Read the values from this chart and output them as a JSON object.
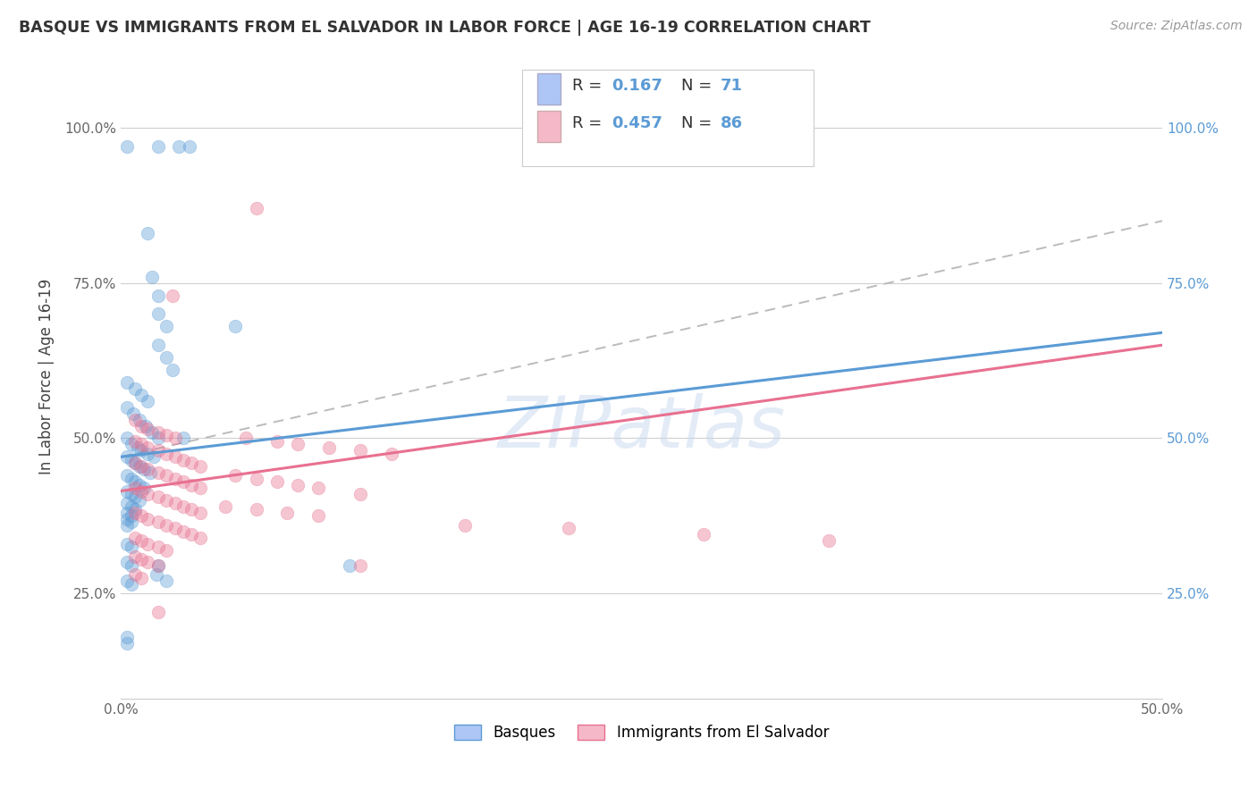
{
  "title": "BASQUE VS IMMIGRANTS FROM EL SALVADOR IN LABOR FORCE | AGE 16-19 CORRELATION CHART",
  "source": "Source: ZipAtlas.com",
  "ylabel": "In Labor Force | Age 16-19",
  "xlim": [
    0.0,
    0.5
  ],
  "ylim": [
    0.08,
    1.12
  ],
  "ytick_vals": [
    0.25,
    0.5,
    0.75,
    1.0
  ],
  "xtick_vals": [
    0.0,
    0.5
  ],
  "xtick_labels": [
    "0.0%",
    "50.0%"
  ],
  "watermark": "ZIPatlas",
  "blue_scatter": [
    [
      0.003,
      0.97
    ],
    [
      0.018,
      0.97
    ],
    [
      0.028,
      0.97
    ],
    [
      0.033,
      0.97
    ],
    [
      0.013,
      0.83
    ],
    [
      0.015,
      0.76
    ],
    [
      0.018,
      0.73
    ],
    [
      0.018,
      0.7
    ],
    [
      0.022,
      0.68
    ],
    [
      0.018,
      0.65
    ],
    [
      0.022,
      0.63
    ],
    [
      0.025,
      0.61
    ],
    [
      0.003,
      0.59
    ],
    [
      0.007,
      0.58
    ],
    [
      0.01,
      0.57
    ],
    [
      0.013,
      0.56
    ],
    [
      0.003,
      0.55
    ],
    [
      0.006,
      0.54
    ],
    [
      0.009,
      0.53
    ],
    [
      0.012,
      0.52
    ],
    [
      0.015,
      0.51
    ],
    [
      0.018,
      0.5
    ],
    [
      0.003,
      0.5
    ],
    [
      0.005,
      0.49
    ],
    [
      0.008,
      0.485
    ],
    [
      0.01,
      0.48
    ],
    [
      0.013,
      0.475
    ],
    [
      0.016,
      0.47
    ],
    [
      0.003,
      0.47
    ],
    [
      0.005,
      0.465
    ],
    [
      0.007,
      0.46
    ],
    [
      0.009,
      0.455
    ],
    [
      0.011,
      0.45
    ],
    [
      0.014,
      0.445
    ],
    [
      0.003,
      0.44
    ],
    [
      0.005,
      0.435
    ],
    [
      0.007,
      0.43
    ],
    [
      0.009,
      0.425
    ],
    [
      0.011,
      0.42
    ],
    [
      0.003,
      0.415
    ],
    [
      0.005,
      0.41
    ],
    [
      0.007,
      0.405
    ],
    [
      0.009,
      0.4
    ],
    [
      0.003,
      0.395
    ],
    [
      0.005,
      0.39
    ],
    [
      0.007,
      0.385
    ],
    [
      0.003,
      0.38
    ],
    [
      0.005,
      0.375
    ],
    [
      0.003,
      0.37
    ],
    [
      0.005,
      0.365
    ],
    [
      0.003,
      0.36
    ],
    [
      0.03,
      0.5
    ],
    [
      0.055,
      0.68
    ],
    [
      0.003,
      0.33
    ],
    [
      0.005,
      0.325
    ],
    [
      0.003,
      0.3
    ],
    [
      0.005,
      0.295
    ],
    [
      0.018,
      0.295
    ],
    [
      0.003,
      0.27
    ],
    [
      0.005,
      0.265
    ],
    [
      0.003,
      0.18
    ],
    [
      0.003,
      0.17
    ],
    [
      0.017,
      0.28
    ],
    [
      0.022,
      0.27
    ],
    [
      0.11,
      0.295
    ]
  ],
  "pink_scatter": [
    [
      0.065,
      0.87
    ],
    [
      0.025,
      0.73
    ],
    [
      0.007,
      0.53
    ],
    [
      0.01,
      0.52
    ],
    [
      0.013,
      0.515
    ],
    [
      0.018,
      0.51
    ],
    [
      0.022,
      0.505
    ],
    [
      0.026,
      0.5
    ],
    [
      0.007,
      0.495
    ],
    [
      0.01,
      0.49
    ],
    [
      0.013,
      0.485
    ],
    [
      0.018,
      0.48
    ],
    [
      0.022,
      0.475
    ],
    [
      0.026,
      0.47
    ],
    [
      0.03,
      0.465
    ],
    [
      0.034,
      0.46
    ],
    [
      0.038,
      0.455
    ],
    [
      0.007,
      0.46
    ],
    [
      0.01,
      0.455
    ],
    [
      0.013,
      0.45
    ],
    [
      0.018,
      0.445
    ],
    [
      0.022,
      0.44
    ],
    [
      0.026,
      0.435
    ],
    [
      0.03,
      0.43
    ],
    [
      0.034,
      0.425
    ],
    [
      0.038,
      0.42
    ],
    [
      0.007,
      0.42
    ],
    [
      0.01,
      0.415
    ],
    [
      0.013,
      0.41
    ],
    [
      0.018,
      0.405
    ],
    [
      0.022,
      0.4
    ],
    [
      0.026,
      0.395
    ],
    [
      0.03,
      0.39
    ],
    [
      0.034,
      0.385
    ],
    [
      0.038,
      0.38
    ],
    [
      0.007,
      0.38
    ],
    [
      0.01,
      0.375
    ],
    [
      0.013,
      0.37
    ],
    [
      0.018,
      0.365
    ],
    [
      0.022,
      0.36
    ],
    [
      0.026,
      0.355
    ],
    [
      0.03,
      0.35
    ],
    [
      0.034,
      0.345
    ],
    [
      0.038,
      0.34
    ],
    [
      0.007,
      0.34
    ],
    [
      0.01,
      0.335
    ],
    [
      0.013,
      0.33
    ],
    [
      0.018,
      0.325
    ],
    [
      0.022,
      0.32
    ],
    [
      0.007,
      0.31
    ],
    [
      0.01,
      0.305
    ],
    [
      0.013,
      0.3
    ],
    [
      0.018,
      0.295
    ],
    [
      0.007,
      0.28
    ],
    [
      0.01,
      0.275
    ],
    [
      0.018,
      0.22
    ],
    [
      0.06,
      0.5
    ],
    [
      0.075,
      0.495
    ],
    [
      0.085,
      0.49
    ],
    [
      0.1,
      0.485
    ],
    [
      0.115,
      0.48
    ],
    [
      0.13,
      0.475
    ],
    [
      0.055,
      0.44
    ],
    [
      0.065,
      0.435
    ],
    [
      0.075,
      0.43
    ],
    [
      0.085,
      0.425
    ],
    [
      0.095,
      0.42
    ],
    [
      0.115,
      0.41
    ],
    [
      0.05,
      0.39
    ],
    [
      0.065,
      0.385
    ],
    [
      0.08,
      0.38
    ],
    [
      0.095,
      0.375
    ],
    [
      0.165,
      0.36
    ],
    [
      0.215,
      0.355
    ],
    [
      0.28,
      0.345
    ],
    [
      0.34,
      0.335
    ],
    [
      0.115,
      0.295
    ]
  ],
  "blue_line": {
    "x0": 0.0,
    "y0": 0.47,
    "x1": 0.5,
    "y1": 0.67
  },
  "pink_line": {
    "x0": 0.0,
    "y0": 0.415,
    "x1": 0.5,
    "y1": 0.65
  },
  "dashed_line": {
    "x0": 0.0,
    "y0": 0.47,
    "x1": 0.5,
    "y1": 0.85
  },
  "legend_basque_label": "Basques",
  "legend_salvador_label": "Immigrants from El Salvador",
  "scatter_size": 110,
  "scatter_alpha": 0.4,
  "line_width": 2.2,
  "background_color": "#ffffff",
  "grid_color": "#d0d0d0",
  "blue_color": "#5b9bd5",
  "pink_color": "#e87090",
  "blue_fill": "#aec6f5",
  "pink_fill": "#f5b8c8",
  "r1": "0.167",
  "n1": "71",
  "r2": "0.457",
  "n2": "86"
}
